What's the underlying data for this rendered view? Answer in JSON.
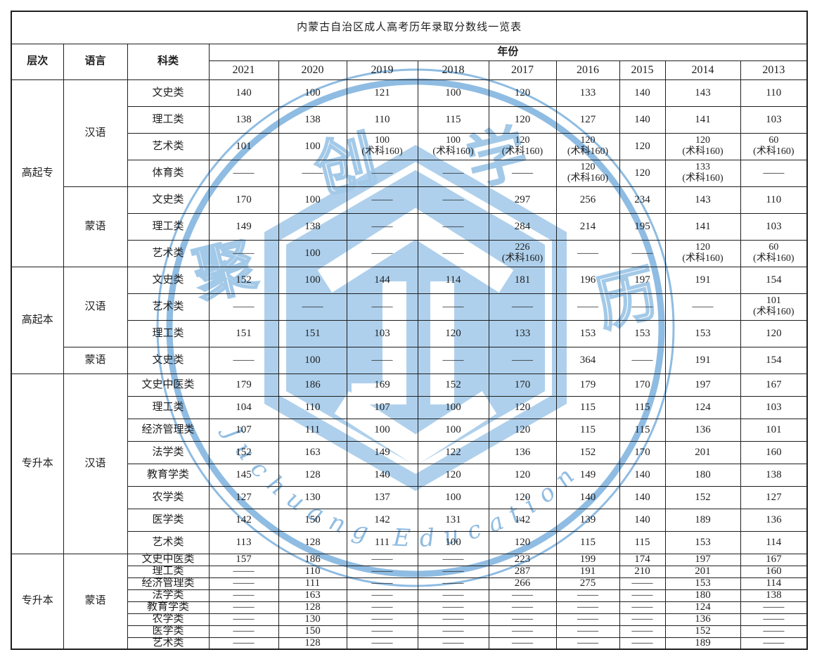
{
  "title": "内蒙古自治区成人高考历年录取分数线一览表",
  "headers": {
    "level": "层次",
    "language": "语言",
    "subject": "科类",
    "year_group": "年份"
  },
  "years": [
    "2021",
    "2020",
    "2019",
    "2018",
    "2017",
    "2016",
    "2015",
    "2014",
    "2013"
  ],
  "sections": [
    {
      "level": "高起专",
      "groups": [
        {
          "language": "汉语",
          "rows": [
            {
              "subject": "文史类",
              "values": [
                "140",
                "100",
                "121",
                "100",
                "120",
                "133",
                "140",
                "143",
                "110"
              ]
            },
            {
              "subject": "理工类",
              "values": [
                "138",
                "138",
                "110",
                "115",
                "120",
                "127",
                "140",
                "141",
                "103"
              ]
            },
            {
              "subject": "艺术类",
              "values": [
                "101",
                "100",
                "100\n(术科160)",
                "100\n(术科160)",
                "120\n(术科160)",
                "120\n(术科160)",
                "120",
                "120\n(术科160)",
                "60\n(术科160)"
              ]
            },
            {
              "subject": "体育类",
              "values": [
                "——",
                "——",
                "——",
                "——",
                "——",
                "120\n(术科160)",
                "120",
                "133\n(术科160)",
                "——"
              ]
            }
          ]
        },
        {
          "language": "蒙语",
          "rows": [
            {
              "subject": "文史类",
              "values": [
                "170",
                "100",
                "——",
                "——",
                "297",
                "256",
                "234",
                "143",
                "110"
              ]
            },
            {
              "subject": "理工类",
              "values": [
                "149",
                "138",
                "——",
                "——",
                "284",
                "214",
                "195",
                "141",
                "103"
              ]
            },
            {
              "subject": "艺术类",
              "values": [
                "——",
                "100",
                "——",
                "——",
                "226\n(术科160)",
                "——",
                "——",
                "120\n(术科160)",
                "60\n(术科160)"
              ]
            }
          ]
        }
      ]
    },
    {
      "level": "高起本",
      "groups": [
        {
          "language": "汉语",
          "rows": [
            {
              "subject": "文史类",
              "values": [
                "152",
                "100",
                "144",
                "114",
                "181",
                "196",
                "197",
                "191",
                "154"
              ]
            },
            {
              "subject": "艺术类",
              "values": [
                "——",
                "——",
                "——",
                "——",
                "——",
                "——",
                "——",
                "——",
                "101\n(术科160)"
              ]
            },
            {
              "subject": "理工类",
              "values": [
                "151",
                "151",
                "103",
                "120",
                "133",
                "153",
                "153",
                "153",
                "120"
              ]
            }
          ]
        },
        {
          "language": "蒙语",
          "rows": [
            {
              "subject": "文史类",
              "values": [
                "——",
                "100",
                "——",
                "——",
                "——",
                "364",
                "——",
                "191",
                "154"
              ]
            }
          ]
        }
      ]
    },
    {
      "level": "专升本",
      "groups": [
        {
          "language": "汉语",
          "rows": [
            {
              "subject": "文史中医类",
              "values": [
                "179",
                "186",
                "169",
                "152",
                "170",
                "179",
                "170",
                "197",
                "167"
              ]
            },
            {
              "subject": "理工类",
              "values": [
                "104",
                "110",
                "107",
                "100",
                "120",
                "115",
                "115",
                "124",
                "103"
              ]
            },
            {
              "subject": "经济管理类",
              "values": [
                "107",
                "111",
                "100",
                "100",
                "120",
                "115",
                "115",
                "136",
                "101"
              ]
            },
            {
              "subject": "法学类",
              "values": [
                "152",
                "163",
                "149",
                "122",
                "136",
                "152",
                "170",
                "201",
                "160"
              ]
            },
            {
              "subject": "教育学类",
              "values": [
                "145",
                "128",
                "140",
                "120",
                "120",
                "149",
                "140",
                "180",
                "138"
              ]
            },
            {
              "subject": "农学类",
              "values": [
                "127",
                "130",
                "137",
                "100",
                "120",
                "140",
                "140",
                "152",
                "127"
              ]
            },
            {
              "subject": "医学类",
              "values": [
                "142",
                "150",
                "142",
                "131",
                "142",
                "139",
                "140",
                "189",
                "136"
              ]
            },
            {
              "subject": "艺术类",
              "values": [
                "113",
                "128",
                "111",
                "100",
                "120",
                "115",
                "115",
                "153",
                "114"
              ]
            }
          ]
        }
      ]
    },
    {
      "level": "专升本",
      "groups": [
        {
          "language": "蒙语",
          "rows": [
            {
              "subject": "文史中医类",
              "values": [
                "157",
                "186",
                "——",
                "——",
                "223",
                "199",
                "174",
                "197",
                "167"
              ]
            },
            {
              "subject": "理工类",
              "values": [
                "——",
                "110",
                "——",
                "——",
                "287",
                "191",
                "210",
                "201",
                "160"
              ]
            },
            {
              "subject": "经济管理类",
              "values": [
                "——",
                "111",
                "——",
                "——",
                "266",
                "275",
                "——",
                "153",
                "114"
              ]
            },
            {
              "subject": "法学类",
              "values": [
                "——",
                "163",
                "——",
                "——",
                "——",
                "——",
                "——",
                "180",
                "138"
              ]
            },
            {
              "subject": "教育学类",
              "values": [
                "——",
                "128",
                "——",
                "——",
                "——",
                "——",
                "——",
                "124",
                "——"
              ]
            },
            {
              "subject": "农学类",
              "values": [
                "——",
                "130",
                "——",
                "——",
                "——",
                "——",
                "——",
                "136",
                "——"
              ]
            },
            {
              "subject": "医学类",
              "values": [
                "——",
                "150",
                "——",
                "——",
                "——",
                "——",
                "——",
                "152",
                "——"
              ]
            },
            {
              "subject": "艺术类",
              "values": [
                "——",
                "128",
                "——",
                "——",
                "——",
                "——",
                "——",
                "189",
                "——"
              ]
            }
          ]
        }
      ]
    }
  ],
  "watermark": {
    "brand_text": "Juchuang  Education",
    "corner_chars": [
      "聚",
      "创",
      "学",
      "历"
    ],
    "colors": {
      "wm-fill": "#aed0ec",
      "wm-stroke": "#8fbce2",
      "wm-light": "#a3c9e8"
    }
  }
}
